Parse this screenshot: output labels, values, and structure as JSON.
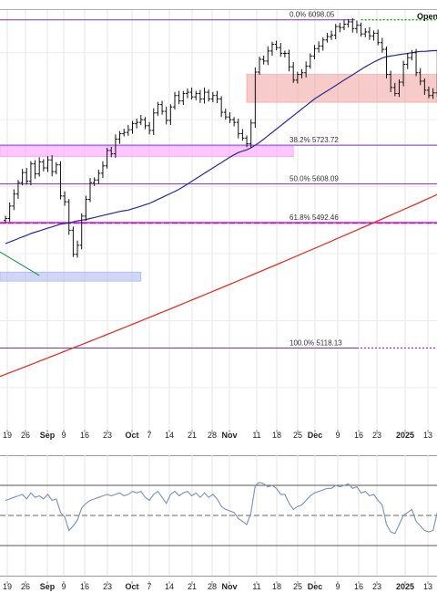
{
  "header": {
    "legend_text": "Open"
  },
  "chart_data": {
    "type": "candlestick",
    "price_axis": {
      "min": 4850,
      "max": 6130
    },
    "x_axis": {
      "ticks": [
        "19",
        "26",
        "Sep",
        "9",
        "16",
        "23",
        "Oct",
        "7",
        "14",
        "21",
        "28",
        "Nov",
        "11",
        "18",
        "25",
        "Dec",
        "9",
        "16",
        "23",
        "2025",
        "13"
      ],
      "bold_ticks": [
        "Sep",
        "Oct",
        "Nov",
        "Dec",
        "2025"
      ]
    },
    "fibonacci_levels": [
      {
        "label": "0.0% 6098.05",
        "value": 6098.05,
        "color": "#7b2fbf"
      },
      {
        "label": "38.2% 5723.72",
        "value": 5723.72,
        "color": "#7b2fbf"
      },
      {
        "label": "50.0% 5608.09",
        "value": 5608.09,
        "color": "#7b2fbf"
      },
      {
        "label": "61.8% 5492.46",
        "value": 5492.46,
        "color": "#cc00cc"
      },
      {
        "label": "100.0% 5118.13",
        "value": 5118.13,
        "color": "#7b2fbf"
      }
    ],
    "zones": [
      {
        "value_low": 5690,
        "value_high": 5720,
        "bar_start": 0,
        "bar_end": 68,
        "color": "#ff99ff"
      },
      {
        "value_low": 5318,
        "value_high": 5345,
        "bar_start": 0,
        "bar_end": 32,
        "color": "#a9b4f0"
      },
      {
        "value_low": 5852,
        "value_high": 5935,
        "bar_start": 57,
        "bar_end": 104,
        "color": "#f2a0a0"
      }
    ],
    "dotted_line": {
      "value": 6098.05,
      "bar_start": 84,
      "bar_end": 104,
      "color": "#1a8c1a"
    },
    "closes": [
      5505,
      5542,
      5578,
      5612,
      5642,
      5616,
      5668,
      5638,
      5674,
      5656,
      5680,
      5645,
      5665,
      5572,
      5555,
      5470,
      5398,
      5425,
      5512,
      5562,
      5612,
      5620,
      5640,
      5662,
      5708,
      5698,
      5742,
      5758,
      5762,
      5770,
      5788,
      5792,
      5800,
      5782,
      5768,
      5820,
      5845,
      5825,
      5798,
      5838,
      5872,
      5856,
      5878,
      5882,
      5868,
      5878,
      5862,
      5882,
      5862,
      5872,
      5862,
      5822,
      5808,
      5800,
      5792,
      5758,
      5745,
      5728,
      5790,
      5942,
      5980,
      5975,
      6005,
      6025,
      6015,
      5998,
      5998,
      5958,
      5918,
      5935,
      5940,
      5960,
      5990,
      6012,
      6020,
      6038,
      6048,
      6052,
      6078,
      6075,
      6085,
      6092,
      6072,
      6082,
      6056,
      6062,
      6050,
      6058,
      6030,
      6010,
      5935,
      5896,
      5878,
      5912,
      5965,
      5985,
      6000,
      5940,
      5915,
      5888,
      5872,
      5880,
      6002,
      5905,
      5855
    ],
    "ma_50": [
      5430,
      5435,
      5440,
      5445,
      5450,
      5455,
      5460,
      5464,
      5468,
      5472,
      5476,
      5480,
      5484,
      5488,
      5490,
      5492,
      5495,
      5498,
      5500,
      5502,
      5505,
      5508,
      5511,
      5514,
      5517,
      5520,
      5523,
      5526,
      5528,
      5530,
      5534,
      5538,
      5542,
      5546,
      5550,
      5556,
      5562,
      5568,
      5574,
      5580,
      5586,
      5592,
      5600,
      5608,
      5616,
      5624,
      5632,
      5640,
      5648,
      5656,
      5664,
      5672,
      5680,
      5688,
      5695,
      5702,
      5706,
      5710,
      5716,
      5724,
      5732,
      5742,
      5752,
      5762,
      5772,
      5782,
      5792,
      5802,
      5812,
      5822,
      5832,
      5842,
      5852,
      5862,
      5870,
      5878,
      5886,
      5894,
      5902,
      5910,
      5918,
      5926,
      5934,
      5942,
      5950,
      5958,
      5965,
      5972,
      5978,
      5984,
      5988,
      5990,
      5992,
      5994,
      5996,
      5998,
      6000,
      6002,
      6004,
      6004,
      6005,
      6006,
      6006,
      6005,
      6004
    ],
    "ma_200": {
      "start_value": 5030,
      "end_value": 5605
    },
    "green_segment": {
      "start_value": 5405,
      "end_value": 5335,
      "bar_start": 0,
      "bar_end": 8
    },
    "rsi": {
      "upper_band": 70,
      "middle_line": 50,
      "lower_band": 30,
      "values": [
        60,
        61,
        62,
        63,
        64,
        61,
        65,
        62,
        63,
        61,
        64,
        60,
        61,
        52,
        49,
        40,
        43,
        47,
        55,
        58,
        60,
        61,
        62,
        63,
        64,
        63,
        64,
        65,
        63,
        64,
        66,
        65,
        66,
        62,
        60,
        64,
        66,
        62,
        58,
        64,
        66,
        63,
        65,
        66,
        63,
        65,
        62,
        65,
        62,
        64,
        61,
        56,
        54,
        53,
        52,
        48,
        46,
        44,
        52,
        70,
        72,
        71,
        69,
        70,
        68,
        64,
        64,
        58,
        54,
        56,
        57,
        60,
        63,
        65,
        66,
        67,
        68,
        68,
        70,
        69,
        70,
        71,
        68,
        69,
        65,
        66,
        63,
        64,
        60,
        57,
        44,
        39,
        38,
        44,
        50,
        52,
        54,
        46,
        43,
        40,
        39,
        40,
        52,
        42,
        39
      ]
    }
  }
}
